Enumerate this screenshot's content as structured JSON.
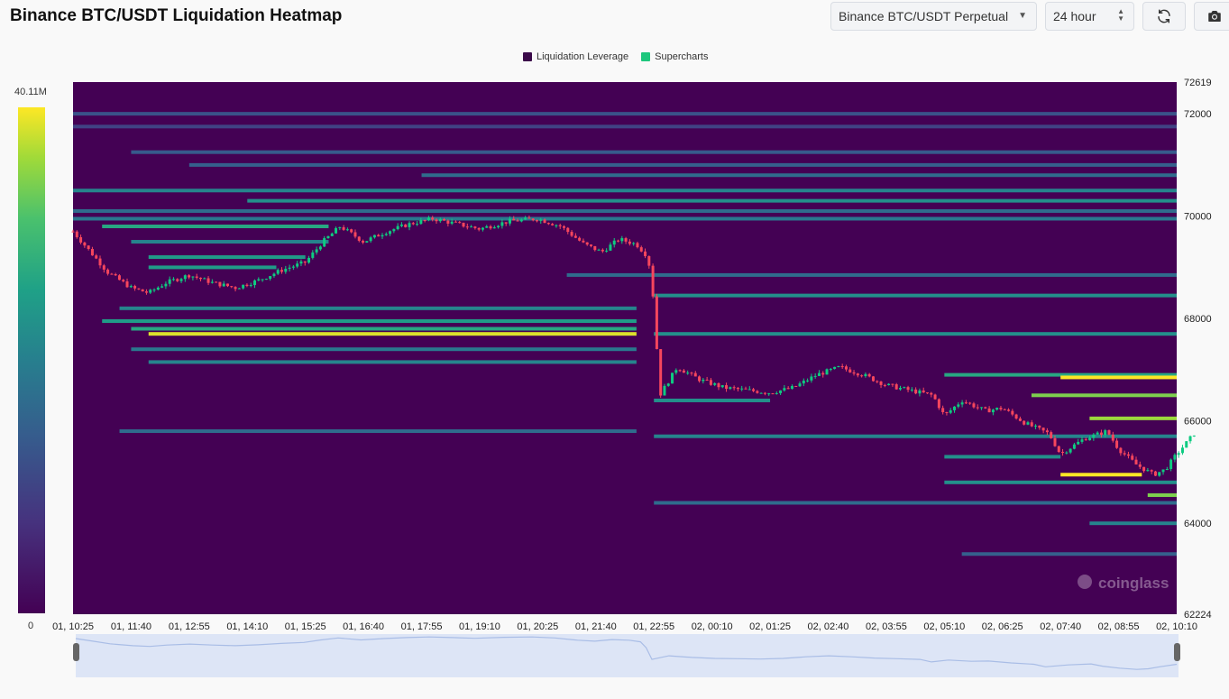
{
  "header": {
    "title": "Binance BTC/USDT Liquidation Heatmap",
    "exchange_select": "Binance BTC/USDT Perpetual",
    "range_select": "24 hour",
    "refresh_icon": "refresh-icon",
    "camera_icon": "camera-icon"
  },
  "legend": {
    "items": [
      {
        "label": "Liquidation Leverage",
        "color": "#3b0a4a"
      },
      {
        "label": "Supercharts",
        "color": "#1ec77d"
      }
    ]
  },
  "scale": {
    "max_label": "40.11M",
    "min_label": "0"
  },
  "watermark": "coinglass",
  "chart_data": {
    "type": "heatmap",
    "title": "Binance BTC/USDT Liquidation Heatmap",
    "ylim": [
      62224,
      72619
    ],
    "y_ticks": [
      72619,
      72000,
      70000,
      68000,
      66000,
      64000,
      62224
    ],
    "y_tick_labels": [
      "72619",
      "72000",
      "70000",
      "68000",
      "66000",
      "64000",
      "62224"
    ],
    "x_tick_labels": [
      "01, 10:25",
      "01, 11:40",
      "01, 12:55",
      "01, 14:10",
      "01, 15:25",
      "01, 16:40",
      "01, 17:55",
      "01, 19:10",
      "01, 20:25",
      "01, 21:40",
      "01, 22:55",
      "02, 00:10",
      "02, 01:25",
      "02, 02:40",
      "02, 03:55",
      "02, 05:10",
      "02, 06:25",
      "02, 07:40",
      "02, 08:55",
      "02, 10:10"
    ],
    "colorscale": {
      "min": 0,
      "max": 40.11,
      "unit": "M",
      "colors": [
        "#440154",
        "#46327e",
        "#365c8d",
        "#277f8e",
        "#1fa187",
        "#4ac16d",
        "#a0da39",
        "#fde725"
      ]
    },
    "liquidation_levels": [
      {
        "price": 72000,
        "start": 0,
        "end": 19,
        "intensity": 0.25
      },
      {
        "price": 71750,
        "start": 0,
        "end": 19,
        "intensity": 0.2
      },
      {
        "price": 71250,
        "start": 1,
        "end": 19,
        "intensity": 0.28
      },
      {
        "price": 71000,
        "start": 2,
        "end": 19,
        "intensity": 0.3
      },
      {
        "price": 70800,
        "start": 6,
        "end": 19,
        "intensity": 0.35
      },
      {
        "price": 70500,
        "start": 0,
        "end": 19,
        "intensity": 0.45
      },
      {
        "price": 70300,
        "start": 3,
        "end": 19,
        "intensity": 0.5
      },
      {
        "price": 70100,
        "start": 0,
        "end": 19,
        "intensity": 0.35
      },
      {
        "price": 69950,
        "start": 0,
        "end": 19,
        "intensity": 0.4
      },
      {
        "price": 69800,
        "start": 0.5,
        "end": 4.4,
        "intensity": 0.6
      },
      {
        "price": 69500,
        "start": 1,
        "end": 4.4,
        "intensity": 0.45
      },
      {
        "price": 69200,
        "start": 1.3,
        "end": 4,
        "intensity": 0.55
      },
      {
        "price": 69000,
        "start": 1.3,
        "end": 3.5,
        "intensity": 0.55
      },
      {
        "price": 68850,
        "start": 8.5,
        "end": 19,
        "intensity": 0.35
      },
      {
        "price": 68450,
        "start": 10,
        "end": 19,
        "intensity": 0.5
      },
      {
        "price": 68200,
        "start": 0.8,
        "end": 9.7,
        "intensity": 0.45
      },
      {
        "price": 67950,
        "start": 0.5,
        "end": 9.7,
        "intensity": 0.55
      },
      {
        "price": 67800,
        "start": 1,
        "end": 9.7,
        "intensity": 0.6
      },
      {
        "price": 67700,
        "start": 1.3,
        "end": 9.7,
        "intensity": 0.95
      },
      {
        "price": 67700,
        "start": 10,
        "end": 19,
        "intensity": 0.5
      },
      {
        "price": 67400,
        "start": 1,
        "end": 9.7,
        "intensity": 0.4
      },
      {
        "price": 67150,
        "start": 1.3,
        "end": 9.7,
        "intensity": 0.45
      },
      {
        "price": 66900,
        "start": 15,
        "end": 19,
        "intensity": 0.6
      },
      {
        "price": 66850,
        "start": 17,
        "end": 19,
        "intensity": 1.0
      },
      {
        "price": 66500,
        "start": 16.5,
        "end": 19,
        "intensity": 0.8
      },
      {
        "price": 66400,
        "start": 10,
        "end": 12,
        "intensity": 0.5
      },
      {
        "price": 66050,
        "start": 17.5,
        "end": 19,
        "intensity": 0.85
      },
      {
        "price": 65800,
        "start": 0.8,
        "end": 9.7,
        "intensity": 0.35
      },
      {
        "price": 65700,
        "start": 10,
        "end": 19,
        "intensity": 0.45
      },
      {
        "price": 65300,
        "start": 15,
        "end": 17,
        "intensity": 0.5
      },
      {
        "price": 64950,
        "start": 17,
        "end": 18.4,
        "intensity": 1.0
      },
      {
        "price": 64800,
        "start": 15,
        "end": 19,
        "intensity": 0.5
      },
      {
        "price": 64550,
        "start": 18.5,
        "end": 19,
        "intensity": 0.8
      },
      {
        "price": 64400,
        "start": 10,
        "end": 19,
        "intensity": 0.35
      },
      {
        "price": 64000,
        "start": 17.5,
        "end": 19,
        "intensity": 0.45
      },
      {
        "price": 63400,
        "start": 15.3,
        "end": 19,
        "intensity": 0.3
      }
    ],
    "price_path": [
      [
        0,
        69700
      ],
      [
        0.3,
        69300
      ],
      [
        0.6,
        68900
      ],
      [
        1.0,
        68600
      ],
      [
        1.3,
        68500
      ],
      [
        1.6,
        68700
      ],
      [
        2.0,
        68850
      ],
      [
        2.4,
        68700
      ],
      [
        2.8,
        68600
      ],
      [
        3.2,
        68750
      ],
      [
        3.6,
        68950
      ],
      [
        4.0,
        69100
      ],
      [
        4.3,
        69500
      ],
      [
        4.6,
        69800
      ],
      [
        5.0,
        69500
      ],
      [
        5.4,
        69700
      ],
      [
        5.8,
        69850
      ],
      [
        6.2,
        69950
      ],
      [
        6.6,
        69850
      ],
      [
        7.0,
        69750
      ],
      [
        7.5,
        69900
      ],
      [
        8.0,
        69950
      ],
      [
        8.4,
        69800
      ],
      [
        8.8,
        69450
      ],
      [
        9.1,
        69300
      ],
      [
        9.4,
        69550
      ],
      [
        9.7,
        69450
      ],
      [
        9.9,
        69200
      ],
      [
        10.0,
        68300
      ],
      [
        10.1,
        66500
      ],
      [
        10.4,
        67050
      ],
      [
        10.8,
        66800
      ],
      [
        11.2,
        66650
      ],
      [
        11.6,
        66600
      ],
      [
        12.0,
        66550
      ],
      [
        12.4,
        66650
      ],
      [
        12.8,
        66900
      ],
      [
        13.2,
        67050
      ],
      [
        13.6,
        66900
      ],
      [
        14.0,
        66700
      ],
      [
        14.4,
        66600
      ],
      [
        14.8,
        66500
      ],
      [
        15.0,
        66100
      ],
      [
        15.3,
        66400
      ],
      [
        15.7,
        66200
      ],
      [
        16.0,
        66250
      ],
      [
        16.4,
        65950
      ],
      [
        16.8,
        65750
      ],
      [
        17.0,
        65350
      ],
      [
        17.4,
        65650
      ],
      [
        17.8,
        65800
      ],
      [
        18.0,
        65450
      ],
      [
        18.3,
        65150
      ],
      [
        18.6,
        64950
      ],
      [
        18.8,
        65050
      ],
      [
        19.0,
        65350
      ],
      [
        19.3,
        65750
      ]
    ]
  }
}
